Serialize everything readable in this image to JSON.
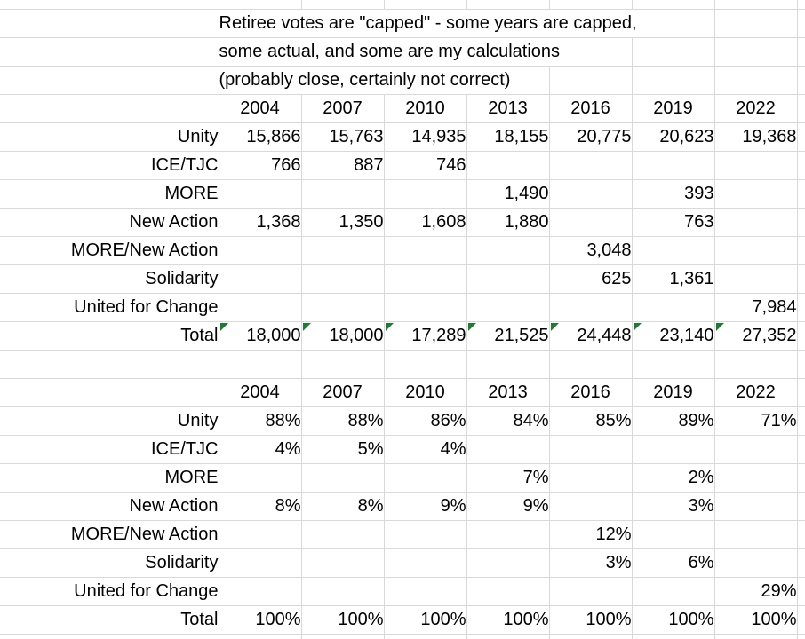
{
  "notes": [
    "Retiree votes are \"capped\" - some years are capped,",
    "some actual, and some are my calculations",
    "(probably close, certainly not correct)"
  ],
  "years": [
    "2004",
    "2007",
    "2010",
    "2013",
    "2016",
    "2019",
    "2022"
  ],
  "votes_table": {
    "rows": [
      {
        "label": "Unity",
        "values": [
          "15,866",
          "15,763",
          "14,935",
          "18,155",
          "20,775",
          "20,623",
          "19,368"
        ]
      },
      {
        "label": "ICE/TJC",
        "values": [
          "766",
          "887",
          "746",
          "",
          "",
          "",
          ""
        ]
      },
      {
        "label": "MORE",
        "values": [
          "",
          "",
          "",
          "1,490",
          "",
          "393",
          ""
        ]
      },
      {
        "label": "New Action",
        "values": [
          "1,368",
          "1,350",
          "1,608",
          "1,880",
          "",
          "763",
          ""
        ]
      },
      {
        "label": "MORE/New Action",
        "values": [
          "",
          "",
          "",
          "",
          "3,048",
          "",
          ""
        ]
      },
      {
        "label": "Solidarity",
        "values": [
          "",
          "",
          "",
          "",
          "625",
          "1,361",
          ""
        ]
      },
      {
        "label": "United for Change",
        "values": [
          "",
          "",
          "",
          "",
          "",
          "",
          "7,984"
        ]
      }
    ],
    "total": {
      "label": "Total",
      "values": [
        "18,000",
        "18,000",
        "17,289",
        "21,525",
        "24,448",
        "23,140",
        "27,352"
      ],
      "flagged": true
    }
  },
  "percent_table": {
    "rows": [
      {
        "label": "Unity",
        "values": [
          "88%",
          "88%",
          "86%",
          "84%",
          "85%",
          "89%",
          "71%"
        ]
      },
      {
        "label": "ICE/TJC",
        "values": [
          "4%",
          "5%",
          "4%",
          "",
          "",
          "",
          ""
        ]
      },
      {
        "label": "MORE",
        "values": [
          "",
          "",
          "",
          "7%",
          "",
          "2%",
          ""
        ]
      },
      {
        "label": "New Action",
        "values": [
          "8%",
          "8%",
          "9%",
          "9%",
          "",
          "3%",
          ""
        ]
      },
      {
        "label": "MORE/New Action",
        "values": [
          "",
          "",
          "",
          "",
          "12%",
          "",
          ""
        ]
      },
      {
        "label": "Solidarity",
        "values": [
          "",
          "",
          "",
          "",
          "3%",
          "6%",
          ""
        ]
      },
      {
        "label": "United for Change",
        "values": [
          "",
          "",
          "",
          "",
          "",
          "",
          "29%"
        ]
      }
    ],
    "total": {
      "label": "Total",
      "values": [
        "100%",
        "100%",
        "100%",
        "100%",
        "100%",
        "100%",
        "100%"
      ],
      "flagged": false
    }
  },
  "icons": {
    "flag_triangle": "error-indicator-icon"
  },
  "colors": {
    "background": "#ffffff",
    "text": "#000000",
    "gridline": "#d9d9d9",
    "cell_border": "#000000",
    "flag_green": "#1e7b34"
  }
}
